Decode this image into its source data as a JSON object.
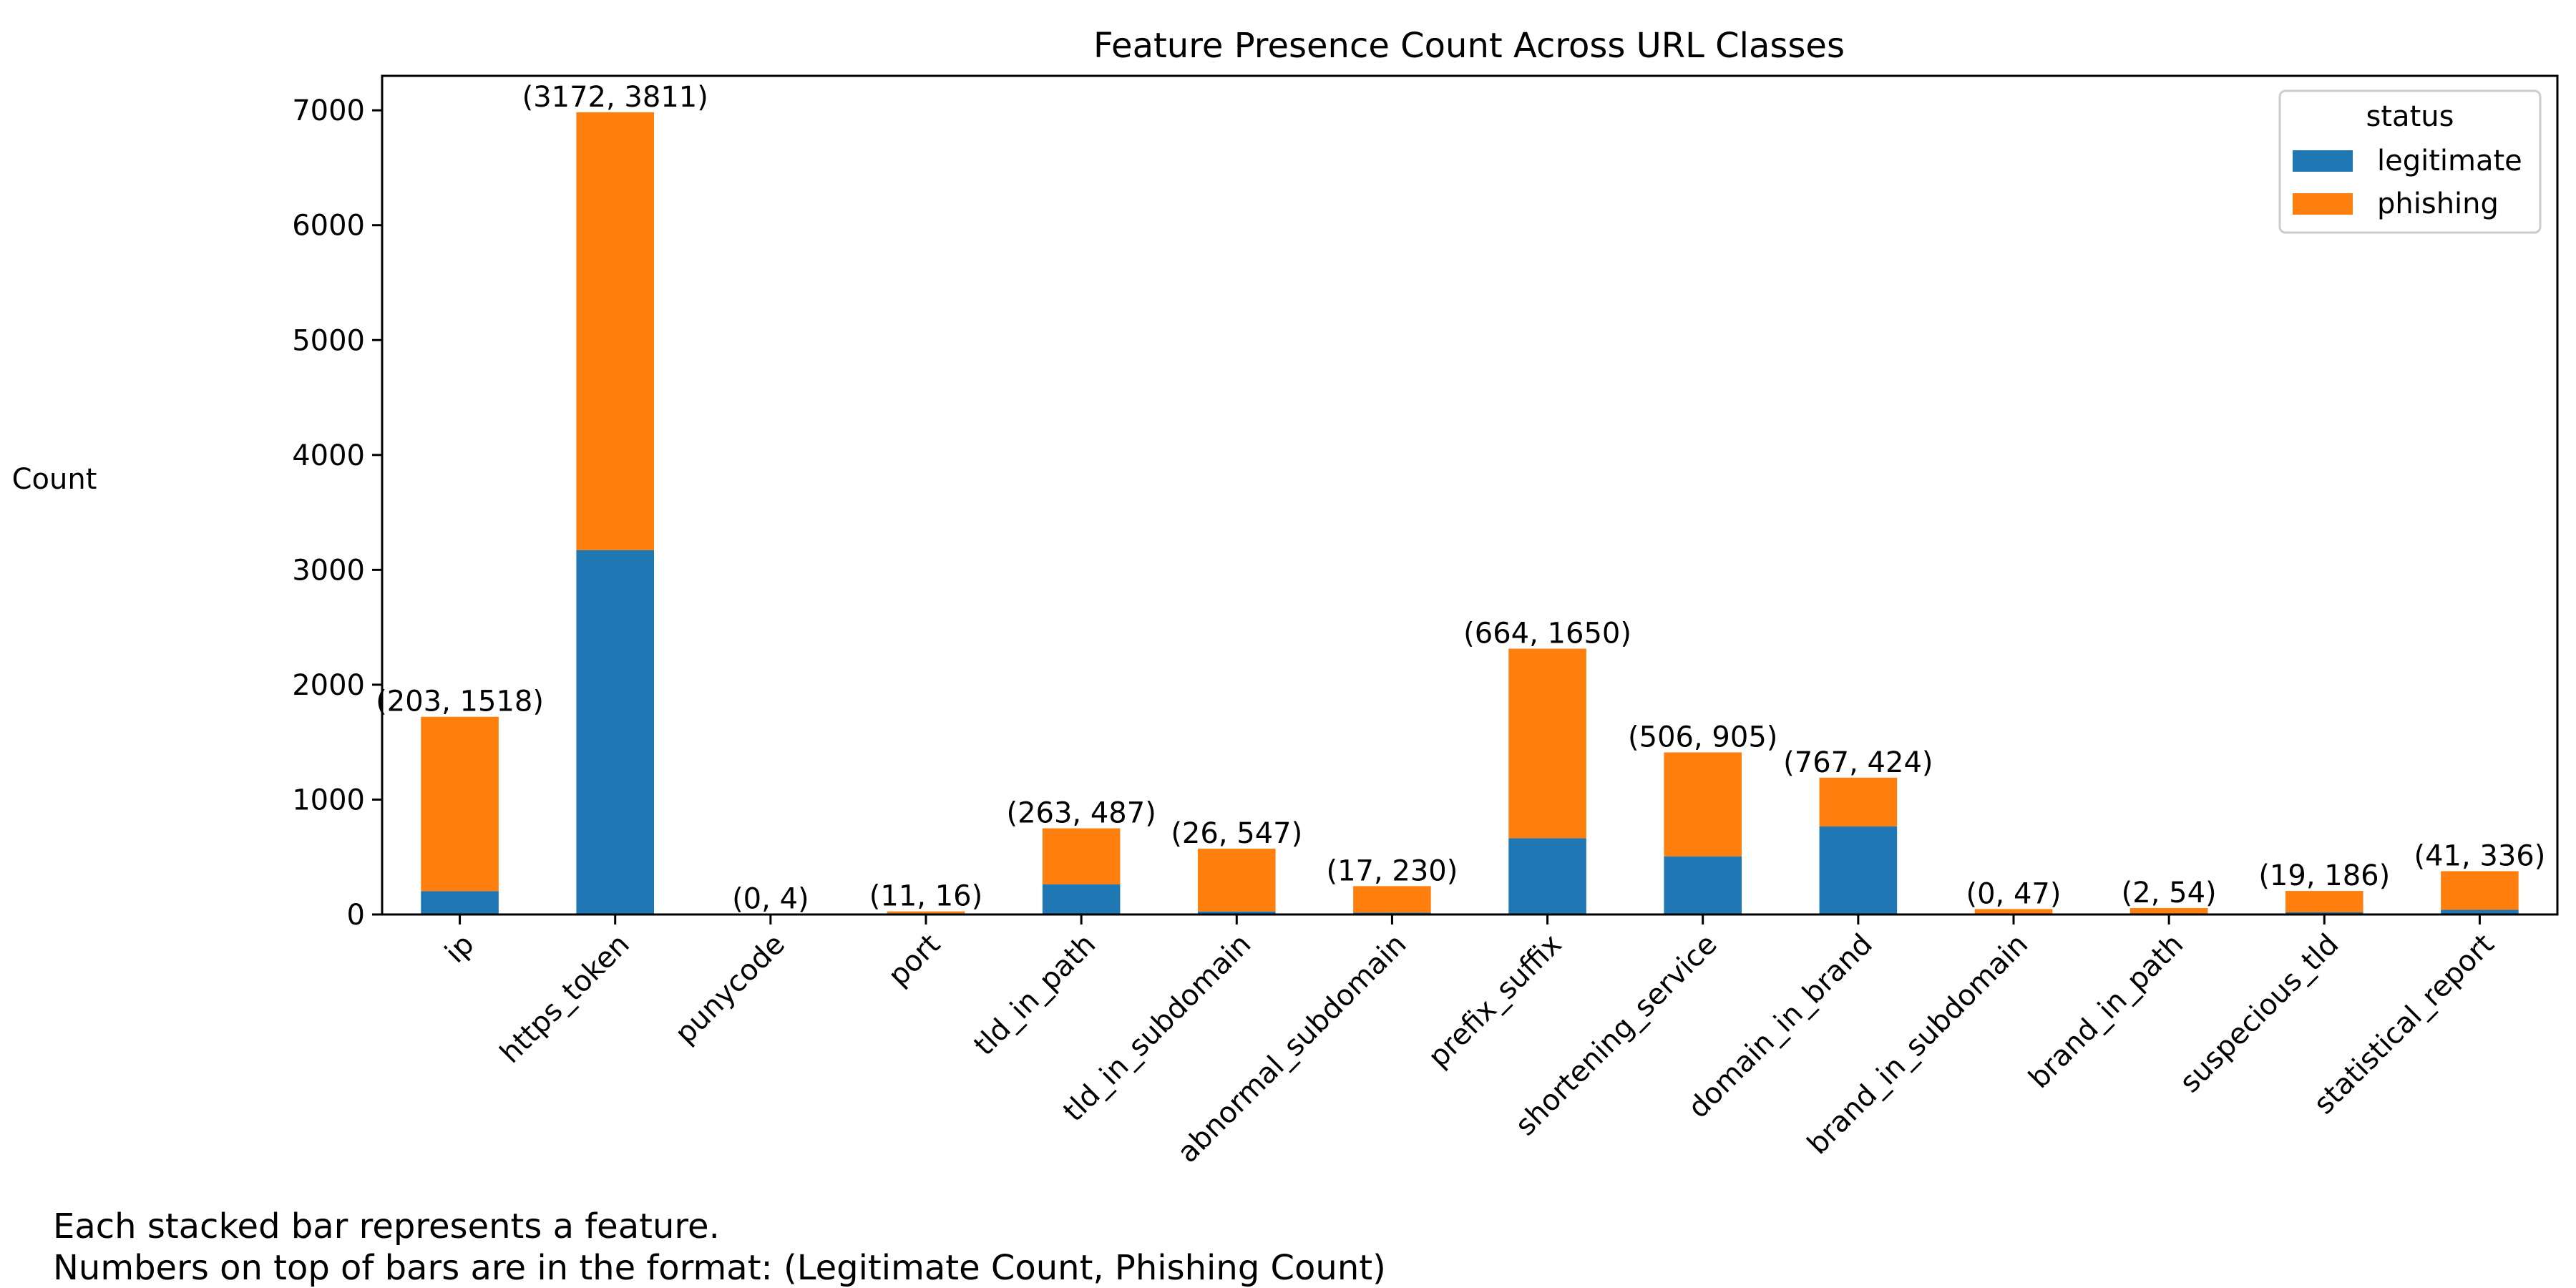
{
  "chart_data": {
    "type": "bar",
    "stacked": true,
    "title": "Feature Presence Count Across URL Classes",
    "xlabel": "",
    "ylabel": "Count",
    "ylim": [
      0,
      7300
    ],
    "yticks": [
      0,
      1000,
      2000,
      3000,
      4000,
      5000,
      6000,
      7000
    ],
    "grid": false,
    "legend": {
      "title": "status",
      "placement": "top-right"
    },
    "categories": [
      "ip",
      "https_token",
      "punycode",
      "port",
      "tld_in_path",
      "tld_in_subdomain",
      "abnormal_subdomain",
      "prefix_suffix",
      "shortening_service",
      "domain_in_brand",
      "brand_in_subdomain",
      "brand_in_path",
      "suspecious_tld",
      "statistical_report"
    ],
    "series": [
      {
        "name": "legitimate",
        "color": "#1f77b4",
        "values": [
          203,
          3172,
          0,
          11,
          263,
          26,
          17,
          664,
          506,
          767,
          0,
          2,
          19,
          41
        ]
      },
      {
        "name": "phishing",
        "color": "#ff7f0e",
        "values": [
          1518,
          3811,
          4,
          16,
          487,
          547,
          230,
          1650,
          905,
          424,
          47,
          54,
          186,
          336
        ]
      }
    ],
    "bar_labels": [
      "(203, 1518)",
      "(3172, 3811)",
      "(0, 4)",
      "(11, 16)",
      "(263, 487)",
      "(26, 547)",
      "(17, 230)",
      "(664, 1650)",
      "(506, 905)",
      "(767, 424)",
      "(0, 47)",
      "(2, 54)",
      "(19, 186)",
      "(41, 336)"
    ]
  },
  "caption": {
    "line1": "Each stacked bar represents a feature.",
    "line2": "Numbers on top of bars are in the format: (Legitimate Count, Phishing Count)"
  }
}
